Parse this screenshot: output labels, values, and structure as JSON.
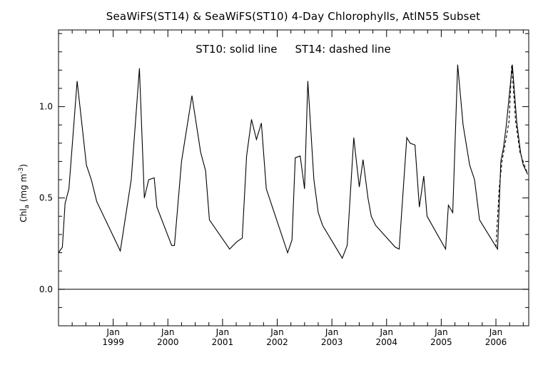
{
  "chart_data": {
    "type": "line",
    "title": "SeaWiFS(ST14) & SeaWiFS(ST10) 4-Day Chlorophylls, AtlN55 Subset",
    "annotation_solid": "ST10: solid line",
    "annotation_dashed": "ST14: dashed line",
    "ylabel": "Chl",
    "ylabel_sub": "a",
    "ylabel_unit_open": " (mg m",
    "ylabel_unit_sup": "-3",
    "ylabel_unit_close": ")",
    "xlim": [
      1998.0,
      2006.6
    ],
    "ylim": [
      -0.2,
      1.42
    ],
    "grid": false,
    "y_ticks": [
      {
        "value": 0.0,
        "label": "0.0"
      },
      {
        "value": 0.5,
        "label": "0.5"
      },
      {
        "value": 1.0,
        "label": "1.0"
      }
    ],
    "y_minor_step": 0.1,
    "x_ticks": [
      {
        "value": 1999.0,
        "month": "Jan",
        "year": "1999"
      },
      {
        "value": 2000.0,
        "month": "Jan",
        "year": "2000"
      },
      {
        "value": 2001.0,
        "month": "Jan",
        "year": "2001"
      },
      {
        "value": 2002.0,
        "month": "Jan",
        "year": "2002"
      },
      {
        "value": 2003.0,
        "month": "Jan",
        "year": "2003"
      },
      {
        "value": 2004.0,
        "month": "Jan",
        "year": "2004"
      },
      {
        "value": 2005.0,
        "month": "Jan",
        "year": "2005"
      },
      {
        "value": 2006.0,
        "month": "Jan",
        "year": "2006"
      }
    ],
    "x_minor_step": 0.25,
    "zero_line": 0.0,
    "series": [
      {
        "name": "ST10",
        "style": "solid",
        "x": [
          1998.0,
          1998.07,
          1998.12,
          1998.19,
          1998.34,
          1998.51,
          1998.6,
          1998.7,
          1999.13,
          1999.33,
          1999.48,
          1999.57,
          1999.65,
          1999.75,
          1999.8,
          2000.07,
          2000.12,
          2000.25,
          2000.44,
          2000.6,
          2000.69,
          2000.76,
          2001.13,
          2001.26,
          2001.36,
          2001.44,
          2001.53,
          2001.62,
          2001.71,
          2001.8,
          2002.19,
          2002.27,
          2002.33,
          2002.42,
          2002.5,
          2002.56,
          2002.67,
          2002.75,
          2002.83,
          2003.19,
          2003.28,
          2003.4,
          2003.5,
          2003.57,
          2003.66,
          2003.72,
          2003.8,
          2004.16,
          2004.23,
          2004.37,
          2004.43,
          2004.52,
          2004.6,
          2004.68,
          2004.74,
          2005.08,
          2005.13,
          2005.21,
          2005.3,
          2005.4,
          2005.52,
          2005.61,
          2005.7,
          2006.03,
          2006.09,
          2006.14,
          2006.19,
          2006.3,
          2006.38,
          2006.45,
          2006.5,
          2006.58
        ],
        "y": [
          0.2,
          0.23,
          0.47,
          0.55,
          1.14,
          0.68,
          0.6,
          0.48,
          0.21,
          0.6,
          1.21,
          0.5,
          0.6,
          0.61,
          0.45,
          0.24,
          0.24,
          0.7,
          1.06,
          0.75,
          0.65,
          0.38,
          0.22,
          0.26,
          0.28,
          0.73,
          0.93,
          0.82,
          0.91,
          0.55,
          0.2,
          0.27,
          0.72,
          0.73,
          0.55,
          1.14,
          0.6,
          0.42,
          0.35,
          0.17,
          0.24,
          0.83,
          0.56,
          0.71,
          0.5,
          0.4,
          0.35,
          0.23,
          0.22,
          0.83,
          0.8,
          0.79,
          0.45,
          0.62,
          0.4,
          0.22,
          0.46,
          0.42,
          1.23,
          0.9,
          0.68,
          0.6,
          0.38,
          0.22,
          0.7,
          0.78,
          0.9,
          1.23,
          0.92,
          0.75,
          0.68,
          0.63
        ]
      },
      {
        "name": "ST14",
        "style": "dashed",
        "x": [
          2006.0,
          2006.06,
          2006.11,
          2006.17,
          2006.24,
          2006.29,
          2006.36,
          2006.44,
          2006.52,
          2006.58
        ],
        "y": [
          0.23,
          0.55,
          0.7,
          0.8,
          0.92,
          1.23,
          0.92,
          0.75,
          0.68,
          0.63
        ]
      }
    ]
  }
}
